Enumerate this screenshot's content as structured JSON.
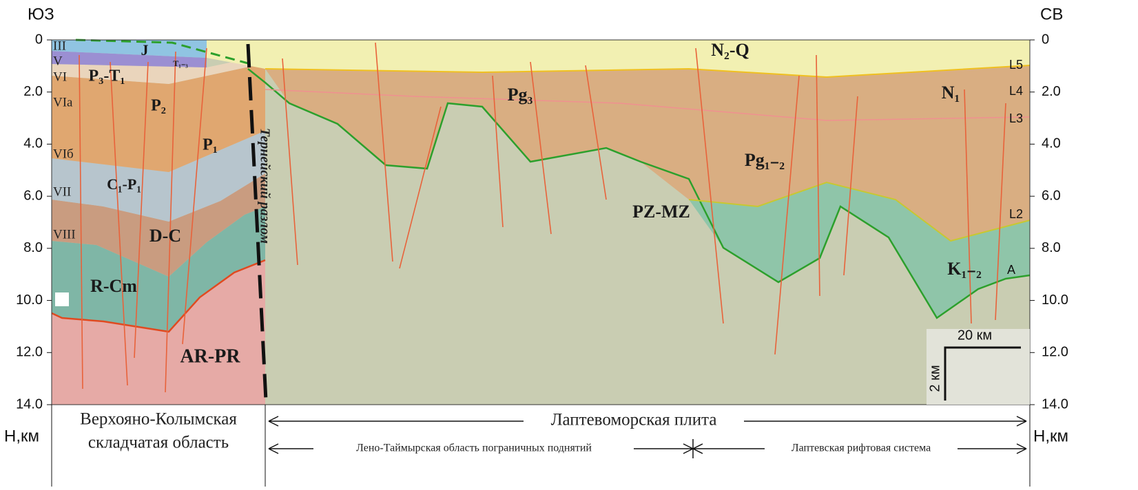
{
  "header": {
    "left_direction": "ЮЗ",
    "right_direction": "СВ"
  },
  "axes": {
    "left_unit": "Н,км",
    "right_unit": "Н,км",
    "left_ticks": [
      "0",
      "2.0",
      "4.0",
      "6.0",
      "8.0",
      "10.0",
      "12.0",
      "14.0"
    ],
    "right_ticks": [
      "0",
      "2.0",
      "4.0",
      "6.0",
      "8.0",
      "10.0",
      "12.0",
      "14.0"
    ]
  },
  "complexes": [
    "III",
    "V",
    "VI",
    "VIa",
    "VIб",
    "VII",
    "VIII"
  ],
  "formations": {
    "left": [
      "J",
      "T₁₋₃",
      "P₃-T₁",
      "P₂",
      "P₁",
      "C₁-P₁",
      "D-C",
      "R-Cm",
      "AR-PR"
    ],
    "right": [
      "N₂-Q",
      "Pg₃",
      "N₁",
      "Pg₁₋₂",
      "PZ-MZ",
      "K₁₋₂"
    ]
  },
  "fault_label": "Тернейский разлом",
  "horizons": [
    "L5",
    "L4",
    "L3",
    "L2",
    "A"
  ],
  "scale": {
    "horizontal": "20 км",
    "vertical": "2 км"
  },
  "regions": {
    "left_line1": "Верхояно-Колымская",
    "left_line2": "складчатая область",
    "plate": "Лаптевоморская плита",
    "sub_left": "Лено-Таймырская область пограничных поднятий",
    "sub_right": "Лаптевская рифтовая система"
  }
}
